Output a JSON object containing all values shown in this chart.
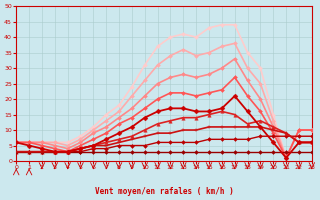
{
  "bg_color": "#cce8ee",
  "grid_color": "#aacccc",
  "xlabel": "Vent moyen/en rafales ( km/h )",
  "xlim": [
    0,
    23
  ],
  "ylim": [
    0,
    50
  ],
  "yticks": [
    0,
    5,
    10,
    15,
    20,
    25,
    30,
    35,
    40,
    45,
    50
  ],
  "xticks": [
    0,
    1,
    2,
    3,
    4,
    5,
    6,
    7,
    8,
    9,
    10,
    11,
    12,
    13,
    14,
    15,
    16,
    17,
    18,
    19,
    20,
    21,
    22,
    23
  ],
  "series": [
    {
      "x": [
        0,
        1,
        2,
        3,
        4,
        5,
        6,
        7,
        8,
        9,
        10,
        11,
        12,
        13,
        14,
        15,
        16,
        17,
        18,
        19,
        20,
        21,
        22,
        23
      ],
      "y": [
        3,
        3,
        3,
        3,
        3,
        3,
        3,
        3,
        3,
        3,
        3,
        3,
        3,
        3,
        3,
        3,
        3,
        3,
        3,
        3,
        3,
        3,
        3,
        3
      ],
      "color": "#990000",
      "lw": 1.0,
      "marker": "D",
      "ms": 2.0,
      "zorder": 8
    },
    {
      "x": [
        0,
        1,
        2,
        3,
        4,
        5,
        6,
        7,
        8,
        9,
        10,
        11,
        12,
        13,
        14,
        15,
        16,
        17,
        18,
        19,
        20,
        21,
        22,
        23
      ],
      "y": [
        3,
        3,
        3,
        3,
        3,
        3,
        4,
        4,
        5,
        5,
        5,
        6,
        6,
        6,
        6,
        7,
        7,
        7,
        7,
        8,
        8,
        8,
        8,
        8
      ],
      "color": "#bb0000",
      "lw": 1.0,
      "marker": "D",
      "ms": 2.0,
      "zorder": 7
    },
    {
      "x": [
        0,
        1,
        2,
        3,
        4,
        5,
        6,
        7,
        8,
        9,
        10,
        11,
        12,
        13,
        14,
        15,
        16,
        17,
        18,
        19,
        20,
        21,
        22,
        23
      ],
      "y": [
        3,
        3,
        3,
        3,
        3,
        4,
        5,
        5,
        6,
        7,
        8,
        9,
        9,
        10,
        10,
        11,
        11,
        11,
        11,
        11,
        10,
        9,
        6,
        6
      ],
      "color": "#cc1111",
      "lw": 1.2,
      "marker": "+",
      "ms": 3.0,
      "zorder": 9
    },
    {
      "x": [
        0,
        1,
        2,
        3,
        4,
        5,
        6,
        7,
        8,
        9,
        10,
        11,
        12,
        13,
        14,
        15,
        16,
        17,
        18,
        19,
        20,
        21,
        22,
        23
      ],
      "y": [
        3,
        3,
        3,
        3,
        3,
        4,
        5,
        6,
        7,
        8,
        10,
        12,
        13,
        14,
        14,
        15,
        16,
        15,
        12,
        13,
        11,
        9,
        6,
        6
      ],
      "color": "#dd2222",
      "lw": 1.2,
      "marker": "^",
      "ms": 2.5,
      "zorder": 7
    },
    {
      "x": [
        0,
        1,
        2,
        3,
        4,
        5,
        6,
        7,
        8,
        9,
        10,
        11,
        12,
        13,
        14,
        15,
        16,
        17,
        18,
        19,
        20,
        21,
        22,
        23
      ],
      "y": [
        6,
        5,
        4,
        3,
        3,
        4,
        5,
        7,
        9,
        11,
        14,
        16,
        17,
        17,
        16,
        16,
        17,
        21,
        16,
        11,
        6,
        1,
        6,
        6
      ],
      "color": "#cc0000",
      "lw": 1.3,
      "marker": "D",
      "ms": 2.5,
      "zorder": 10
    },
    {
      "x": [
        0,
        1,
        2,
        3,
        4,
        5,
        6,
        7,
        8,
        9,
        10,
        11,
        12,
        13,
        14,
        15,
        16,
        17,
        18,
        19,
        20,
        21,
        22,
        23
      ],
      "y": [
        6,
        6,
        5,
        4,
        3,
        5,
        7,
        9,
        12,
        14,
        17,
        20,
        22,
        22,
        21,
        22,
        23,
        27,
        21,
        16,
        9,
        1,
        10,
        10
      ],
      "color": "#ff5555",
      "lw": 1.2,
      "marker": "D",
      "ms": 2.0,
      "zorder": 6
    },
    {
      "x": [
        0,
        1,
        2,
        3,
        4,
        5,
        6,
        7,
        8,
        9,
        10,
        11,
        12,
        13,
        14,
        15,
        16,
        17,
        18,
        19,
        20,
        21,
        22,
        23
      ],
      "y": [
        6,
        6,
        6,
        5,
        4,
        6,
        9,
        11,
        14,
        17,
        21,
        25,
        27,
        28,
        27,
        28,
        30,
        33,
        26,
        20,
        11,
        1,
        10,
        10
      ],
      "color": "#ff8888",
      "lw": 1.2,
      "marker": "D",
      "ms": 2.0,
      "zorder": 5
    },
    {
      "x": [
        0,
        1,
        2,
        3,
        4,
        5,
        6,
        7,
        8,
        9,
        10,
        11,
        12,
        13,
        14,
        15,
        16,
        17,
        18,
        19,
        20,
        21,
        22,
        23
      ],
      "y": [
        6,
        6,
        6,
        6,
        5,
        7,
        10,
        13,
        16,
        21,
        26,
        31,
        34,
        36,
        34,
        35,
        37,
        38,
        30,
        25,
        13,
        1,
        10,
        10
      ],
      "color": "#ffaaaa",
      "lw": 1.2,
      "marker": "D",
      "ms": 2.0,
      "zorder": 4
    },
    {
      "x": [
        0,
        1,
        2,
        3,
        4,
        5,
        6,
        7,
        8,
        9,
        10,
        11,
        12,
        13,
        14,
        15,
        16,
        17,
        18,
        19,
        20,
        21,
        22,
        23
      ],
      "y": [
        6,
        6,
        6,
        6,
        6,
        8,
        11,
        15,
        18,
        24,
        31,
        37,
        40,
        41,
        40,
        43,
        44,
        44,
        35,
        30,
        15,
        1,
        10,
        10
      ],
      "color": "#ffcccc",
      "lw": 1.2,
      "marker": "D",
      "ms": 2.0,
      "zorder": 3
    }
  ],
  "wind_arrows": [
    {
      "x": 0,
      "up": true
    },
    {
      "x": 1,
      "up": true
    },
    {
      "x": 2,
      "up": false
    },
    {
      "x": 3,
      "up": false
    },
    {
      "x": 4,
      "up": false
    },
    {
      "x": 5,
      "up": false
    },
    {
      "x": 6,
      "up": false
    },
    {
      "x": 7,
      "up": false
    },
    {
      "x": 8,
      "up": false
    },
    {
      "x": 9,
      "up": false
    },
    {
      "x": 10,
      "up": false
    },
    {
      "x": 11,
      "up": false
    },
    {
      "x": 12,
      "up": false
    },
    {
      "x": 13,
      "up": false
    },
    {
      "x": 14,
      "up": false
    },
    {
      "x": 15,
      "up": false
    },
    {
      "x": 16,
      "up": false
    },
    {
      "x": 17,
      "up": false
    },
    {
      "x": 18,
      "up": false
    },
    {
      "x": 19,
      "up": false
    },
    {
      "x": 20,
      "up": false
    },
    {
      "x": 21,
      "up": false
    },
    {
      "x": 22,
      "up": false
    },
    {
      "x": 23,
      "up": false
    }
  ]
}
